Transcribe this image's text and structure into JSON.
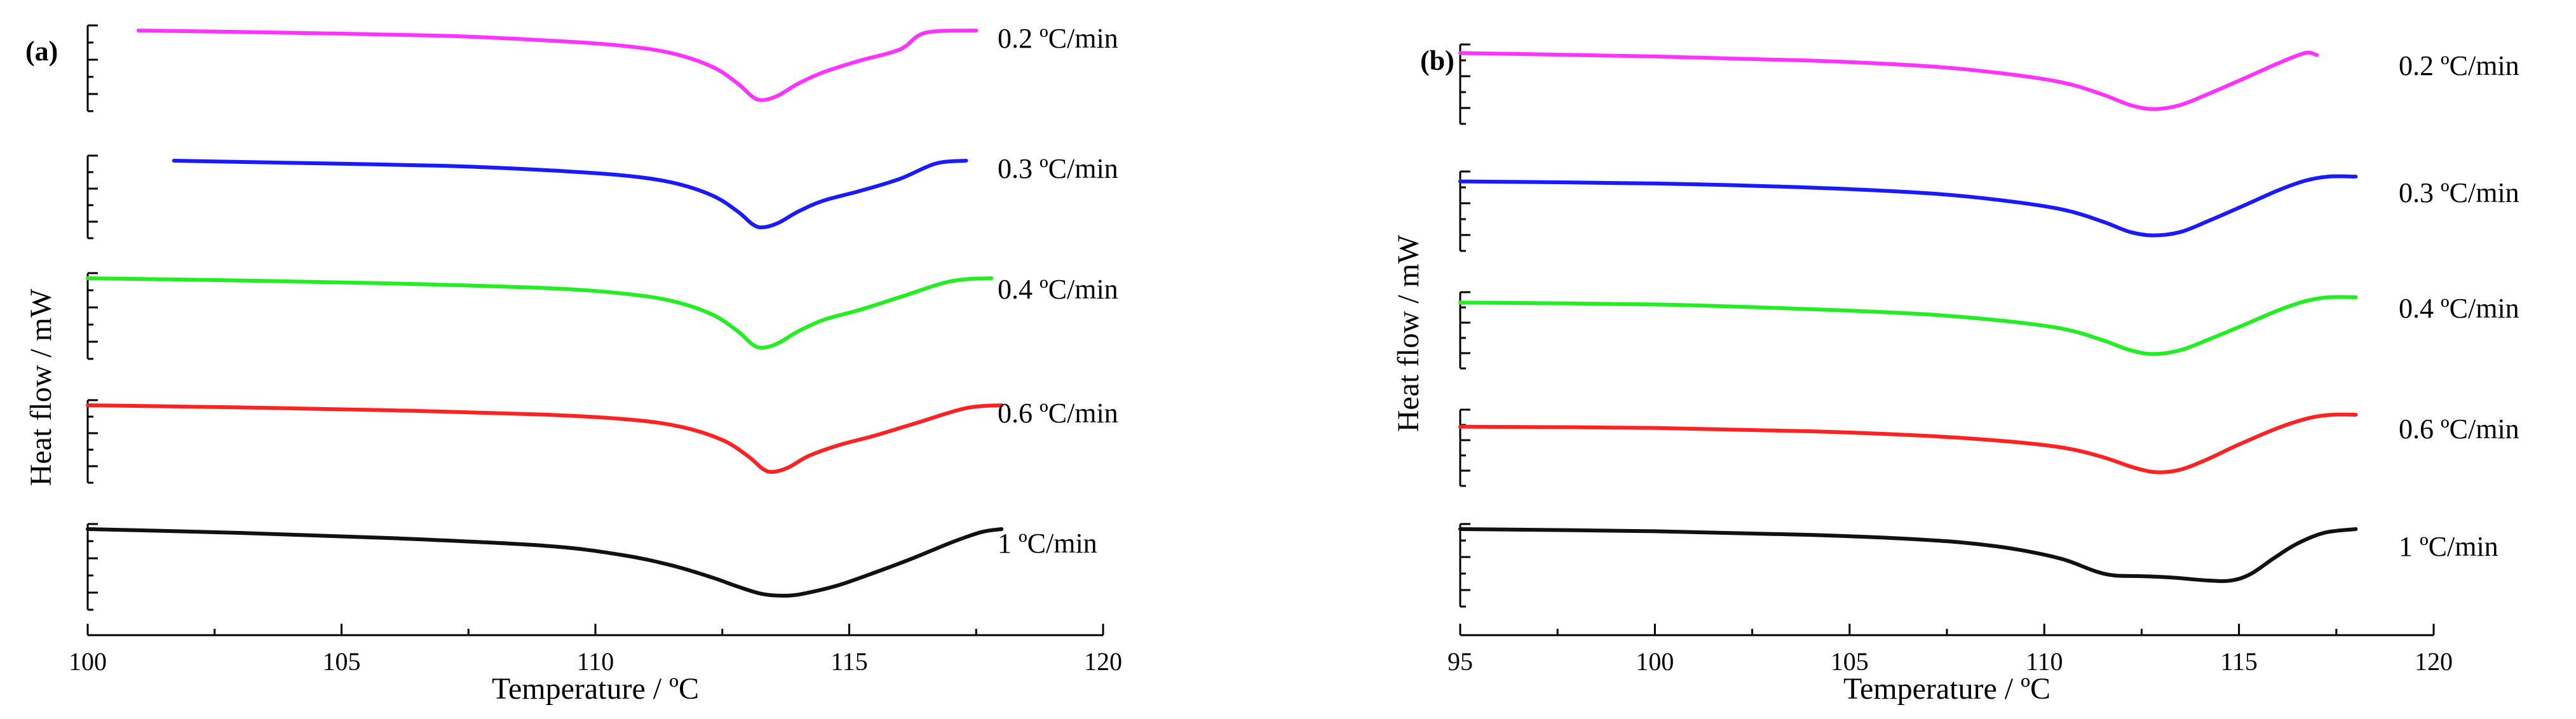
{
  "chart_data": [
    {
      "type": "line",
      "panel_label": "(a)",
      "xlabel": "Temperature / ºC",
      "ylabel": "Heat flow / mW",
      "xlim": [
        100,
        120
      ],
      "xticks": [
        "100",
        "105",
        "110",
        "115",
        "120"
      ],
      "series": [
        {
          "name": "0.2 ºC/min",
          "color": "#ff33ff",
          "x": [
            101,
            104,
            107,
            109,
            110.5,
            111.5,
            112.3,
            112.8,
            113.1,
            113.3,
            113.6,
            114,
            114.5,
            115.2,
            116,
            116.5,
            117.5
          ],
          "y": [
            1.0,
            0.97,
            0.93,
            0.87,
            0.8,
            0.7,
            0.52,
            0.3,
            0.12,
            0.08,
            0.14,
            0.3,
            0.45,
            0.6,
            0.75,
            0.97,
            1.0
          ]
        },
        {
          "name": "0.3 ºC/min",
          "color": "#1a1aff",
          "x": [
            101.7,
            104,
            107,
            109,
            110.5,
            111.5,
            112.3,
            112.8,
            113.1,
            113.3,
            113.6,
            114,
            114.5,
            115.2,
            116,
            116.7,
            117.3
          ],
          "y": [
            1.0,
            0.97,
            0.93,
            0.87,
            0.8,
            0.7,
            0.52,
            0.3,
            0.12,
            0.08,
            0.14,
            0.3,
            0.45,
            0.58,
            0.75,
            0.96,
            1.0
          ]
        },
        {
          "name": "0.4 ºC/min",
          "color": "#22ee22",
          "x": [
            100,
            103,
            106,
            109,
            110.5,
            111.5,
            112.3,
            112.8,
            113.1,
            113.3,
            113.6,
            114,
            114.5,
            115.2,
            116,
            117,
            117.8
          ],
          "y": [
            1.0,
            0.97,
            0.93,
            0.87,
            0.8,
            0.7,
            0.52,
            0.3,
            0.12,
            0.08,
            0.14,
            0.3,
            0.45,
            0.58,
            0.75,
            0.96,
            1.0
          ]
        },
        {
          "name": "0.6 ºC/min",
          "color": "#ff2222",
          "x": [
            100,
            103,
            106,
            109,
            110.7,
            111.7,
            112.5,
            113,
            113.3,
            113.5,
            113.8,
            114.2,
            114.8,
            115.5,
            116.3,
            117.3,
            118
          ],
          "y": [
            1.0,
            0.97,
            0.93,
            0.87,
            0.8,
            0.7,
            0.52,
            0.3,
            0.12,
            0.08,
            0.14,
            0.3,
            0.45,
            0.58,
            0.75,
            0.96,
            1.0
          ]
        },
        {
          "name": "1 ºC/min",
          "color": "#111111",
          "x": [
            100,
            103,
            106,
            109,
            110.5,
            111.5,
            112.3,
            112.8,
            113.3,
            113.8,
            114.2,
            114.8,
            115.4,
            116.2,
            117,
            117.6,
            118
          ],
          "y": [
            1.0,
            0.95,
            0.88,
            0.78,
            0.66,
            0.52,
            0.36,
            0.24,
            0.14,
            0.12,
            0.16,
            0.26,
            0.4,
            0.6,
            0.82,
            0.96,
            1.0
          ]
        }
      ]
    },
    {
      "type": "line",
      "panel_label": "(b)",
      "xlabel": "Temperature / ºC",
      "ylabel": "Heat flow / mW",
      "xlim": [
        95,
        120
      ],
      "xticks": [
        "95",
        "100",
        "105",
        "110",
        "115",
        "120"
      ],
      "series": [
        {
          "name": "0.2 ºC/min",
          "color": "#ff33ff",
          "x": [
            95,
            100,
            104,
            107,
            109,
            110.5,
            111.5,
            112.2,
            112.8,
            113.5,
            114.3,
            115.2,
            116,
            116.7,
            117
          ],
          "y": [
            0.95,
            0.9,
            0.84,
            0.76,
            0.65,
            0.52,
            0.35,
            0.2,
            0.14,
            0.2,
            0.38,
            0.6,
            0.8,
            0.95,
            0.92
          ]
        },
        {
          "name": "0.3 ºC/min",
          "color": "#1a1aff",
          "x": [
            95,
            100,
            104,
            107,
            109,
            110.5,
            111.5,
            112.2,
            112.8,
            113.5,
            114.3,
            115.2,
            116,
            116.7,
            117.3,
            118
          ],
          "y": [
            0.93,
            0.9,
            0.84,
            0.76,
            0.65,
            0.52,
            0.35,
            0.2,
            0.15,
            0.2,
            0.38,
            0.6,
            0.8,
            0.94,
            1.0,
            1.0
          ]
        },
        {
          "name": "0.4 ºC/min",
          "color": "#22ee22",
          "x": [
            95,
            100,
            104,
            107,
            109,
            110.5,
            111.5,
            112.2,
            112.8,
            113.5,
            114.3,
            115.2,
            116,
            116.7,
            117.3,
            118
          ],
          "y": [
            0.92,
            0.89,
            0.82,
            0.74,
            0.64,
            0.52,
            0.35,
            0.2,
            0.14,
            0.2,
            0.38,
            0.6,
            0.8,
            0.94,
            1.0,
            1.0
          ]
        },
        {
          "name": "0.6 ºC/min",
          "color": "#ff2222",
          "x": [
            95,
            100,
            104,
            107,
            109,
            110.5,
            111.5,
            112.3,
            112.9,
            113.5,
            114.2,
            115,
            116,
            116.8,
            117.4,
            118
          ],
          "y": [
            0.82,
            0.8,
            0.75,
            0.68,
            0.6,
            0.5,
            0.36,
            0.2,
            0.13,
            0.17,
            0.33,
            0.55,
            0.8,
            0.95,
            1.0,
            1.0
          ]
        },
        {
          "name": "1 ºC/min",
          "color": "#111111",
          "x": [
            95,
            100,
            104,
            107,
            108.5,
            109.5,
            110.5,
            111.3,
            111.8,
            112.5,
            113.3,
            114.2,
            114.8,
            115.3,
            115.9,
            116.5,
            117.2,
            118
          ],
          "y": [
            1.0,
            0.97,
            0.92,
            0.85,
            0.78,
            0.7,
            0.58,
            0.42,
            0.36,
            0.35,
            0.33,
            0.29,
            0.29,
            0.38,
            0.6,
            0.8,
            0.95,
            1.0
          ]
        }
      ]
    }
  ]
}
